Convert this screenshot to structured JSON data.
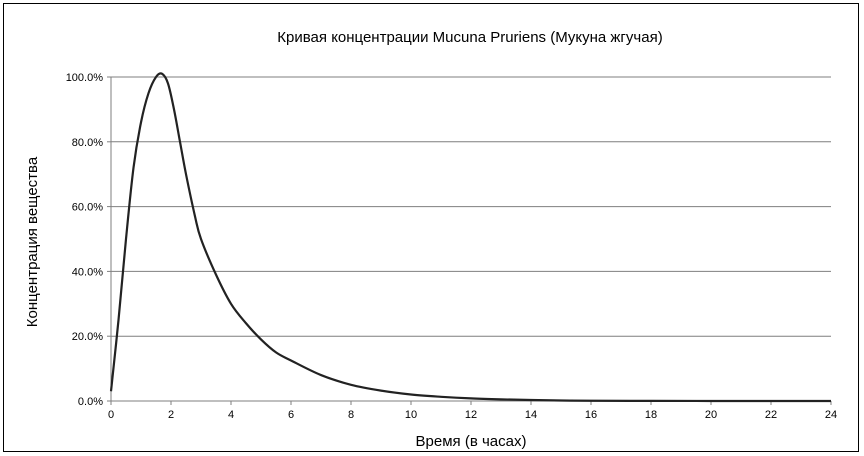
{
  "chart_data": {
    "type": "line",
    "title": "Кривая концентрации Mucuna Pruriens (Мукуна жгучая)",
    "xlabel": "Время (в часах)",
    "ylabel": "Концентрация вещества",
    "xlim": [
      0,
      24
    ],
    "ylim": [
      0,
      100
    ],
    "x_ticks": [
      0,
      2,
      4,
      6,
      8,
      10,
      12,
      14,
      16,
      18,
      20,
      22,
      24
    ],
    "x_tick_labels": [
      "0",
      "2",
      "4",
      "6",
      "8",
      "10",
      "12",
      "14",
      "16",
      "18",
      "20",
      "22",
      "24"
    ],
    "y_ticks": [
      0,
      20,
      40,
      60,
      80,
      100
    ],
    "y_tick_labels": [
      "0.0%",
      "20.0%",
      "40.0%",
      "60.0%",
      "80.0%",
      "100.0%"
    ],
    "grid": "horizontal",
    "legend": "none",
    "line_color": "#222222",
    "series": [
      {
        "x": [
          0,
          0.25,
          0.5,
          0.75,
          1.0,
          1.25,
          1.5,
          1.7,
          1.9,
          2.1,
          2.3,
          2.5,
          2.8,
          3.0,
          3.5,
          4.0,
          4.5,
          5.0,
          5.5,
          6.0,
          7.0,
          8.0,
          9.0,
          10.0,
          11.0,
          12.0,
          13.0,
          14.0,
          15.0,
          16.0,
          18.0,
          20.0,
          22.0,
          24.0
        ],
        "y": [
          3,
          25,
          50,
          72,
          86,
          95,
          100,
          101,
          98,
          90,
          80,
          70,
          57,
          50,
          39,
          30,
          24,
          19,
          15,
          12.5,
          8,
          5,
          3.2,
          2,
          1.3,
          0.8,
          0.5,
          0.3,
          0.15,
          0.08,
          0.03,
          0.01,
          0,
          0
        ]
      }
    ]
  }
}
